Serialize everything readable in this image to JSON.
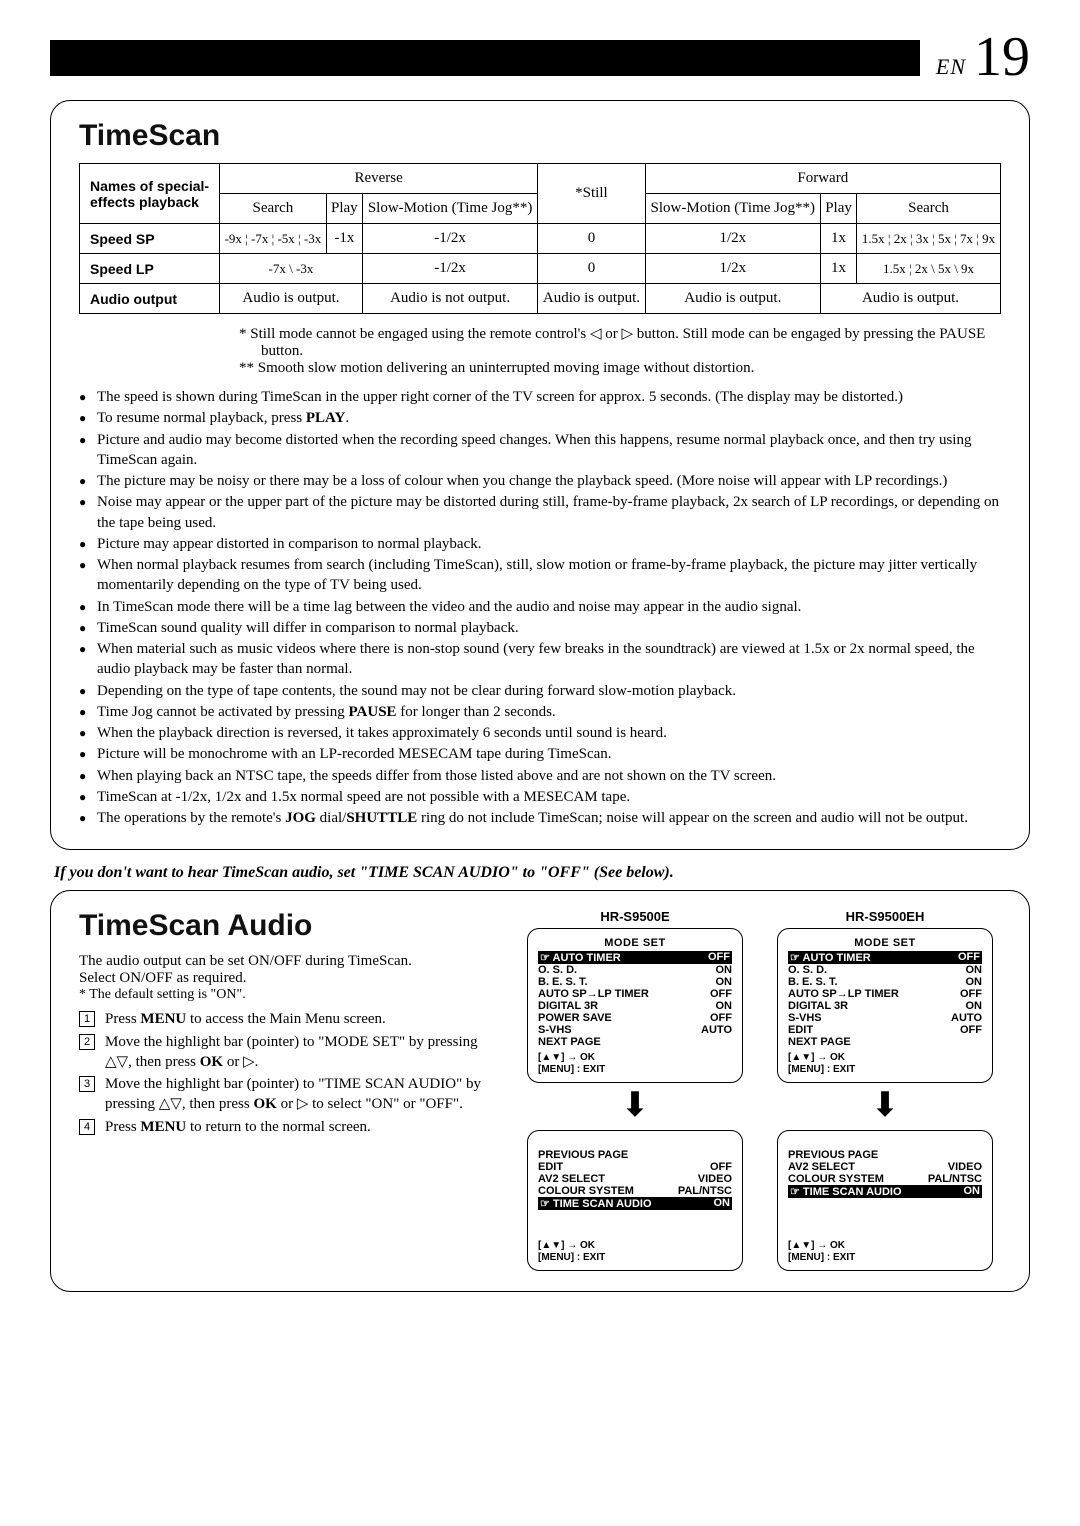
{
  "page": {
    "prefix": "EN",
    "number": "19"
  },
  "timescan": {
    "title": "TimeScan",
    "header_rowspan": "Names of special-effects playback",
    "dir_reverse": "Reverse",
    "dir_forward": "Forward",
    "subheads": {
      "rev_search": "Search",
      "rev_play": "Play",
      "rev_slow": "Slow-Motion (Time Jog**)",
      "still": "*Still",
      "fwd_slow": "Slow-Motion (Time Jog**)",
      "fwd_play": "Play",
      "fwd_search": "Search"
    },
    "rows": {
      "sp_label": "Speed   SP",
      "sp": {
        "rev_search": "-9x ¦ -7x ¦ -5x ¦ -3x",
        "rev_play": "-1x",
        "rev_slow": "-1/2x",
        "still": "0",
        "fwd_slow": "1/2x",
        "fwd_play": "1x",
        "fwd_search": "1.5x ¦ 2x ¦ 3x ¦ 5x ¦ 7x ¦ 9x"
      },
      "lp_label": "Speed   LP",
      "lp": {
        "rev_search": "-7x    \\    -3x",
        "rev_slow": "-1/2x",
        "still": "0",
        "fwd_slow": "1/2x",
        "fwd_play": "1x",
        "fwd_search": "1.5x ¦ 2x  \\   5x   \\   9x"
      },
      "audio_label": "Audio output",
      "audio": {
        "rev_search_play": "Audio is output.",
        "rev_slow": "Audio is not output.",
        "still": "Audio is output.",
        "fwd_slow": "Audio is output.",
        "fwd_search": "Audio is output."
      }
    },
    "footnote1": "* Still mode cannot be engaged using the remote control's ◁ or ▷ button.  Still mode can be engaged by pressing the PAUSE button.",
    "footnote2": "** Smooth slow motion delivering an uninterrupted moving image without distortion.",
    "bullets": [
      "The speed is shown during TimeScan in the upper right corner of the TV screen for approx. 5 seconds. (The display may be distorted.)",
      "To resume normal playback, press PLAY.",
      "Picture and audio may become distorted when the recording speed changes. When this happens, resume normal playback once, and then try using TimeScan again.",
      "The picture may be noisy or there may be a loss of colour when you change the playback speed. (More noise will appear with LP recordings.)",
      "Noise may appear or the upper part of the picture may be distorted during still, frame-by-frame playback, 2x search of LP recordings, or depending on the tape being used.",
      "Picture may appear distorted in comparison to normal playback.",
      "When normal playback resumes from search (including TimeScan), still, slow motion or frame-by-frame playback, the picture may jitter vertically momentarily depending on the type of TV being used.",
      "In TimeScan mode there will be a time lag between the video and the audio and noise may appear in the audio signal.",
      "TimeScan sound quality will differ in comparison to normal playback.",
      "When material such as music videos where there is non-stop sound (very few breaks in the soundtrack) are viewed at 1.5x or 2x normal speed, the audio playback may be faster than normal.",
      "Depending on the type of tape contents, the sound may not be clear during forward slow-motion playback.",
      "Time Jog cannot be activated by pressing PAUSE for longer than 2 seconds.",
      "When the playback direction is reversed, it takes approximately 6 seconds until sound is heard.",
      "Picture will be monochrome with an LP-recorded MESECAM tape during TimeScan.",
      "When playing back an NTSC tape, the speeds differ from those listed above and are not shown on the TV screen.",
      "TimeScan at -1/2x, 1/2x and 1.5x normal speed are not possible with a MESECAM tape.",
      "The operations by the remote's JOG dial/SHUTTLE ring do not include TimeScan; noise will appear on the screen and audio will not be output."
    ]
  },
  "divider_note": "If you don't want to hear TimeScan audio, set \"TIME SCAN AUDIO\" to \"OFF\" (See below).",
  "audio": {
    "title": "TimeScan Audio",
    "intro1": "The audio output can be set ON/OFF during TimeScan.",
    "intro2": "Select ON/OFF as required.",
    "intro3": "* The default setting is \"ON\".",
    "steps": [
      "Press MENU to access the Main Menu screen.",
      "Move the highlight bar (pointer) to \"MODE SET\" by pressing △▽, then press OK or ▷.",
      "Move the highlight bar (pointer) to \"TIME SCAN AUDIO\" by pressing △▽, then press OK or ▷ to select \"ON\" or \"OFF\".",
      "Press MENU to return to the normal screen."
    ],
    "model_a": {
      "name": "HR-S9500E",
      "osd1_title": "MODE SET",
      "osd1": [
        {
          "hl": true,
          "l": "☞ AUTO TIMER",
          "r": "OFF"
        },
        {
          "hl": false,
          "l": "O. S. D.",
          "r": "ON"
        },
        {
          "hl": false,
          "l": "B. E. S. T.",
          "r": "ON"
        },
        {
          "hl": false,
          "l": "AUTO SP→LP TIMER",
          "r": "OFF"
        },
        {
          "hl": false,
          "l": "DIGITAL 3R",
          "r": "ON"
        },
        {
          "hl": false,
          "l": "POWER SAVE",
          "r": "OFF"
        },
        {
          "hl": false,
          "l": "S-VHS",
          "r": "AUTO"
        },
        {
          "hl": false,
          "l": "NEXT PAGE",
          "r": ""
        }
      ],
      "osd1_foot1": "[▲▼] → OK",
      "osd1_foot2": "[MENU] : EXIT",
      "osd2": [
        {
          "hl": false,
          "l": "PREVIOUS PAGE",
          "r": ""
        },
        {
          "hl": false,
          "l": "EDIT",
          "r": "OFF"
        },
        {
          "hl": false,
          "l": "AV2 SELECT",
          "r": "VIDEO"
        },
        {
          "hl": false,
          "l": "COLOUR SYSTEM",
          "r": "PAL/NTSC"
        },
        {
          "hl": true,
          "l": "☞ TIME SCAN AUDIO",
          "r": "ON"
        }
      ],
      "osd2_foot1": "[▲▼] → OK",
      "osd2_foot2": "[MENU] : EXIT"
    },
    "model_b": {
      "name": "HR-S9500EH",
      "osd1_title": "MODE SET",
      "osd1": [
        {
          "hl": true,
          "l": "☞ AUTO TIMER",
          "r": "OFF"
        },
        {
          "hl": false,
          "l": "O. S. D.",
          "r": "ON"
        },
        {
          "hl": false,
          "l": "B. E. S. T.",
          "r": "ON"
        },
        {
          "hl": false,
          "l": "AUTO SP→LP TIMER",
          "r": "OFF"
        },
        {
          "hl": false,
          "l": "DIGITAL 3R",
          "r": "ON"
        },
        {
          "hl": false,
          "l": "S-VHS",
          "r": "AUTO"
        },
        {
          "hl": false,
          "l": "EDIT",
          "r": "OFF"
        },
        {
          "hl": false,
          "l": "NEXT PAGE",
          "r": ""
        }
      ],
      "osd1_foot1": "[▲▼] → OK",
      "osd1_foot2": "[MENU] : EXIT",
      "osd2": [
        {
          "hl": false,
          "l": "PREVIOUS PAGE",
          "r": ""
        },
        {
          "hl": false,
          "l": "AV2 SELECT",
          "r": "VIDEO"
        },
        {
          "hl": false,
          "l": "COLOUR SYSTEM",
          "r": "PAL/NTSC"
        },
        {
          "hl": true,
          "l": "☞ TIME SCAN AUDIO",
          "r": "ON"
        }
      ],
      "osd2_foot1": "[▲▼] → OK",
      "osd2_foot2": "[MENU] : EXIT"
    }
  }
}
